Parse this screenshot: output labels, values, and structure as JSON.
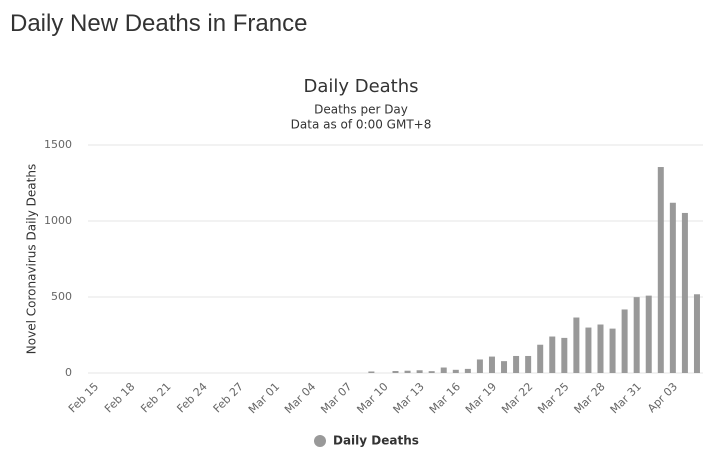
{
  "page_title": "Daily New Deaths in France",
  "chart_data": {
    "type": "bar",
    "title": "Daily Deaths",
    "subtitle": [
      "Deaths per Day",
      "Data as of 0:00 GMT+8"
    ],
    "y_label": "Novel Coronavirus Daily Deaths",
    "categories": [
      "Feb 15",
      null,
      null,
      "Feb 18",
      null,
      null,
      "Feb 21",
      null,
      null,
      "Feb 24",
      null,
      null,
      "Feb 27",
      null,
      null,
      "Mar 01",
      null,
      null,
      "Mar 04",
      null,
      null,
      "Mar 07",
      null,
      null,
      "Mar 10",
      null,
      null,
      "Mar 13",
      null,
      null,
      "Mar 16",
      null,
      null,
      "Mar 19",
      null,
      null,
      "Mar 22",
      null,
      null,
      "Mar 25",
      null,
      null,
      "Mar 28",
      null,
      null,
      "Mar 31",
      null,
      null,
      "Apr 03",
      null,
      null
    ],
    "series": [
      {
        "name": "Daily Deaths",
        "color": "#999999",
        "values": [
          0,
          0,
          0,
          0,
          0,
          0,
          0,
          0,
          0,
          0,
          0,
          0,
          0,
          0,
          0,
          0,
          0,
          0,
          0,
          0,
          0,
          0,
          0,
          10,
          0,
          13,
          15,
          18,
          12,
          36,
          21,
          27,
          89,
          108,
          78,
          112,
          112,
          186,
          240,
          231,
          365,
          299,
          319,
          292,
          418,
          499,
          509,
          1355,
          1120,
          1053,
          518
        ]
      }
    ],
    "ylim": [
      0,
      1500
    ],
    "yticks": [
      0,
      500,
      1000,
      1500
    ],
    "grid": true,
    "legend": "bottom"
  }
}
